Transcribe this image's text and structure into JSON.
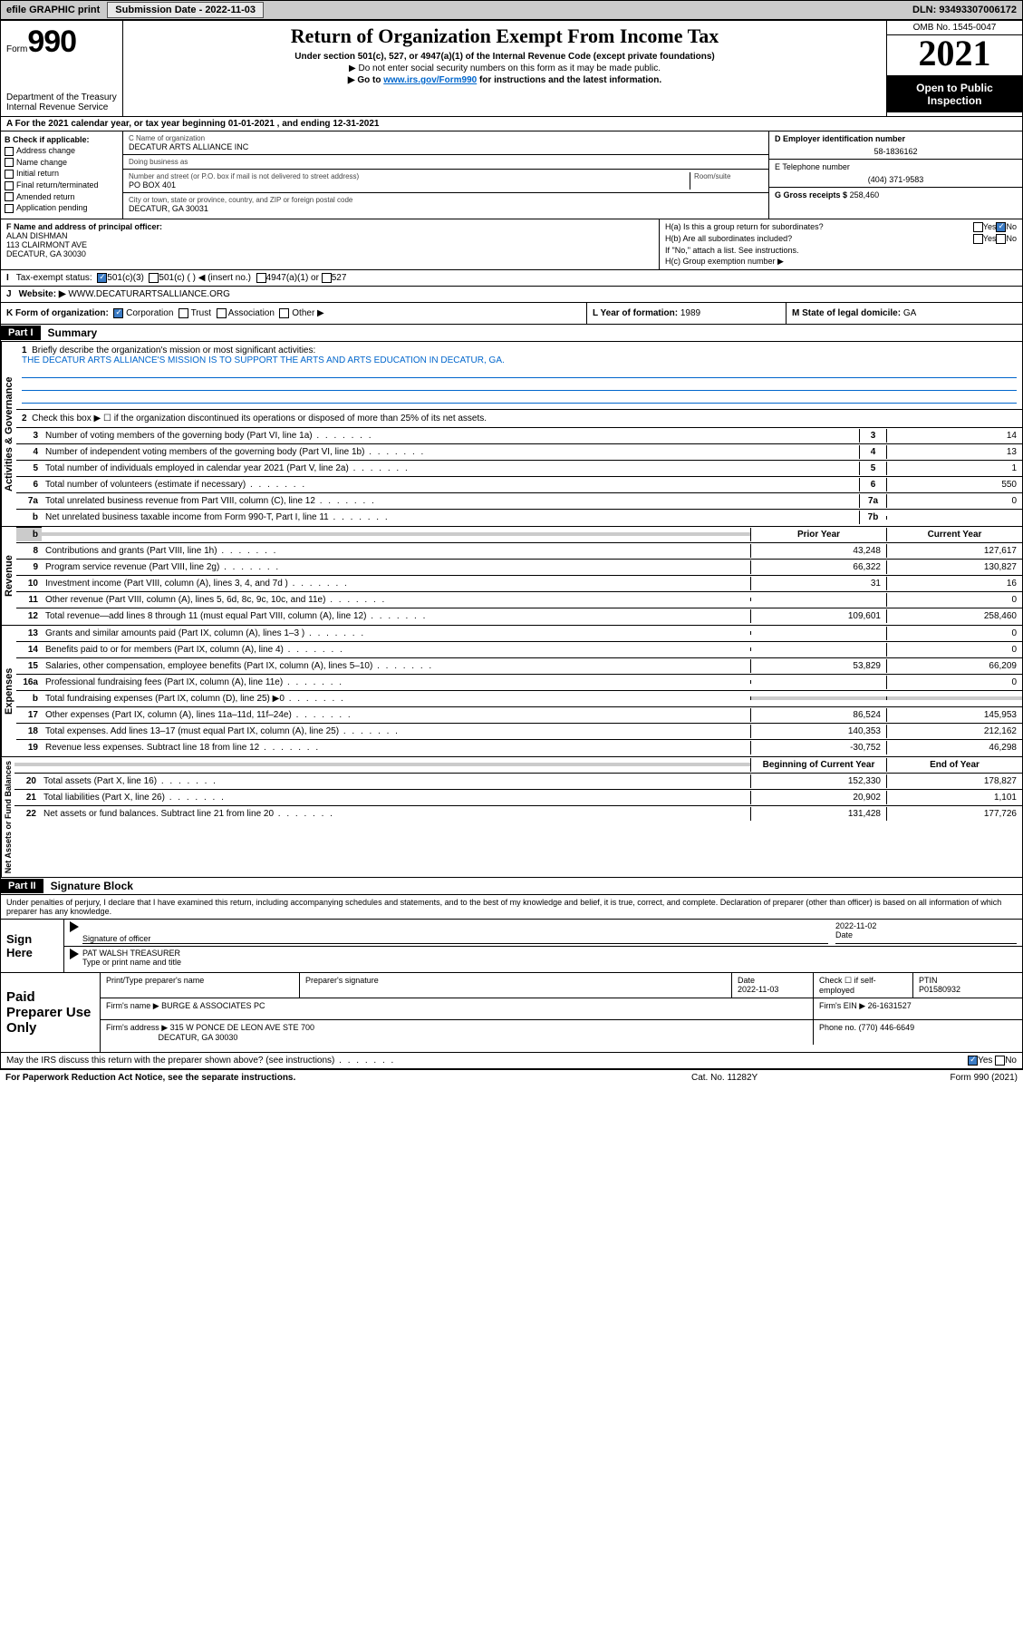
{
  "topbar": {
    "efile_label": "efile GRAPHIC print",
    "submission_label": "Submission Date - 2022-11-03",
    "dln_label": "DLN: 93493307006172"
  },
  "header": {
    "form_label": "Form",
    "form_num": "990",
    "dept": "Department of the Treasury Internal Revenue Service",
    "title": "Return of Organization Exempt From Income Tax",
    "subtitle": "Under section 501(c), 527, or 4947(a)(1) of the Internal Revenue Code (except private foundations)",
    "instr1": "▶ Do not enter social security numbers on this form as it may be made public.",
    "instr2_pre": "▶ Go to ",
    "instr2_link": "www.irs.gov/Form990",
    "instr2_post": " for instructions and the latest information.",
    "omb": "OMB No. 1545-0047",
    "year": "2021",
    "open_pub": "Open to Public Inspection"
  },
  "row_a": "A For the 2021 calendar year, or tax year beginning 01-01-2021   , and ending 12-31-2021",
  "section_b": {
    "hdr": "B Check if applicable:",
    "items": [
      "Address change",
      "Name change",
      "Initial return",
      "Final return/terminated",
      "Amended return",
      "Application pending"
    ]
  },
  "section_c": {
    "name_lbl": "C Name of organization",
    "name": "DECATUR ARTS ALLIANCE INC",
    "dba_lbl": "Doing business as",
    "dba": "",
    "street_lbl": "Number and street (or P.O. box if mail is not delivered to street address)",
    "room_lbl": "Room/suite",
    "street": "PO BOX 401",
    "city_lbl": "City or town, state or province, country, and ZIP or foreign postal code",
    "city": "DECATUR, GA  30031"
  },
  "section_d": {
    "ein_lbl": "D Employer identification number",
    "ein": "58-1836162",
    "tel_lbl": "E Telephone number",
    "tel": "(404) 371-9583",
    "gross_lbl": "G Gross receipts $",
    "gross": "258,460"
  },
  "section_f": {
    "lbl": "F Name and address of principal officer:",
    "name": "ALAN DISHMAN",
    "addr1": "113 CLAIRMONT AVE",
    "addr2": "DECATUR, GA  30030"
  },
  "section_h": {
    "ha": "H(a)  Is this a group return for subordinates?",
    "hb": "H(b)  Are all subordinates included?",
    "hb_note": "If \"No,\" attach a list. See instructions.",
    "hc": "H(c)  Group exemption number ▶",
    "yes": "Yes",
    "no": "No"
  },
  "row_i": {
    "lbl": "I",
    "text": "Tax-exempt status:",
    "opts": [
      "501(c)(3)",
      "501(c) (  ) ◀ (insert no.)",
      "4947(a)(1) or",
      "527"
    ]
  },
  "row_j": {
    "lbl": "J",
    "text": "Website: ▶",
    "val": "WWW.DECATURARTSALLIANCE.ORG"
  },
  "row_k": {
    "lbl": "K Form of organization:",
    "opts": [
      "Corporation",
      "Trust",
      "Association",
      "Other ▶"
    ]
  },
  "row_l": {
    "lbl": "L Year of formation:",
    "val": "1989"
  },
  "row_m": {
    "lbl": "M State of legal domicile:",
    "val": "GA"
  },
  "part1": {
    "hdr": "Part I",
    "title": "Summary",
    "q1": "Briefly describe the organization's mission or most significant activities:",
    "mission": "THE DECATUR ARTS ALLIANCE'S MISSION IS TO SUPPORT THE ARTS AND ARTS EDUCATION IN DECATUR, GA.",
    "q2": "Check this box ▶ ☐  if the organization discontinued its operations or disposed of more than 25% of its net assets."
  },
  "gov_lines": [
    {
      "n": "3",
      "d": "Number of voting members of the governing body (Part VI, line 1a)",
      "b": "3",
      "v": "14"
    },
    {
      "n": "4",
      "d": "Number of independent voting members of the governing body (Part VI, line 1b)",
      "b": "4",
      "v": "13"
    },
    {
      "n": "5",
      "d": "Total number of individuals employed in calendar year 2021 (Part V, line 2a)",
      "b": "5",
      "v": "1"
    },
    {
      "n": "6",
      "d": "Total number of volunteers (estimate if necessary)",
      "b": "6",
      "v": "550"
    },
    {
      "n": "7a",
      "d": "Total unrelated business revenue from Part VIII, column (C), line 12",
      "b": "7a",
      "v": "0"
    },
    {
      "n": "b",
      "d": "Net unrelated business taxable income from Form 990-T, Part I, line 11",
      "b": "7b",
      "v": ""
    }
  ],
  "rev_hdr": {
    "prior": "Prior Year",
    "current": "Current Year"
  },
  "rev_lines": [
    {
      "n": "8",
      "d": "Contributions and grants (Part VIII, line 1h)",
      "p": "43,248",
      "c": "127,617"
    },
    {
      "n": "9",
      "d": "Program service revenue (Part VIII, line 2g)",
      "p": "66,322",
      "c": "130,827"
    },
    {
      "n": "10",
      "d": "Investment income (Part VIII, column (A), lines 3, 4, and 7d )",
      "p": "31",
      "c": "16"
    },
    {
      "n": "11",
      "d": "Other revenue (Part VIII, column (A), lines 5, 6d, 8c, 9c, 10c, and 11e)",
      "p": "",
      "c": "0"
    },
    {
      "n": "12",
      "d": "Total revenue—add lines 8 through 11 (must equal Part VIII, column (A), line 12)",
      "p": "109,601",
      "c": "258,460"
    }
  ],
  "exp_lines": [
    {
      "n": "13",
      "d": "Grants and similar amounts paid (Part IX, column (A), lines 1–3 )",
      "p": "",
      "c": "0"
    },
    {
      "n": "14",
      "d": "Benefits paid to or for members (Part IX, column (A), line 4)",
      "p": "",
      "c": "0"
    },
    {
      "n": "15",
      "d": "Salaries, other compensation, employee benefits (Part IX, column (A), lines 5–10)",
      "p": "53,829",
      "c": "66,209"
    },
    {
      "n": "16a",
      "d": "Professional fundraising fees (Part IX, column (A), line 11e)",
      "p": "",
      "c": "0"
    },
    {
      "n": "b",
      "d": "Total fundraising expenses (Part IX, column (D), line 25) ▶0",
      "p": "shaded",
      "c": "shaded"
    },
    {
      "n": "17",
      "d": "Other expenses (Part IX, column (A), lines 11a–11d, 11f–24e)",
      "p": "86,524",
      "c": "145,953"
    },
    {
      "n": "18",
      "d": "Total expenses. Add lines 13–17 (must equal Part IX, column (A), line 25)",
      "p": "140,353",
      "c": "212,162"
    },
    {
      "n": "19",
      "d": "Revenue less expenses. Subtract line 18 from line 12",
      "p": "-30,752",
      "c": "46,298"
    }
  ],
  "net_hdr": {
    "beg": "Beginning of Current Year",
    "end": "End of Year"
  },
  "net_lines": [
    {
      "n": "20",
      "d": "Total assets (Part X, line 16)",
      "p": "152,330",
      "c": "178,827"
    },
    {
      "n": "21",
      "d": "Total liabilities (Part X, line 26)",
      "p": "20,902",
      "c": "1,101"
    },
    {
      "n": "22",
      "d": "Net assets or fund balances. Subtract line 21 from line 20",
      "p": "131,428",
      "c": "177,726"
    }
  ],
  "vlabels": {
    "gov": "Activities & Governance",
    "rev": "Revenue",
    "exp": "Expenses",
    "net": "Net Assets or Fund Balances"
  },
  "part2": {
    "hdr": "Part II",
    "title": "Signature Block",
    "decl": "Under penalties of perjury, I declare that I have examined this return, including accompanying schedules and statements, and to the best of my knowledge and belief, it is true, correct, and complete. Declaration of preparer (other than officer) is based on all information of which preparer has any knowledge."
  },
  "sign": {
    "lbl": "Sign Here",
    "sig_lbl": "Signature of officer",
    "date_lbl": "Date",
    "date": "2022-11-02",
    "name": "PAT WALSH  TREASURER",
    "name_lbl": "Type or print name and title"
  },
  "prep": {
    "lbl": "Paid Preparer Use Only",
    "r1": {
      "c1": "Print/Type preparer's name",
      "c2": "Preparer's signature",
      "c3": "Date",
      "c3v": "2022-11-03",
      "c4": "Check ☐ if self-employed",
      "c5": "PTIN",
      "c5v": "P01580932"
    },
    "r2": {
      "c1": "Firm's name      ▶",
      "c1v": "BURGE & ASSOCIATES PC",
      "c2": "Firm's EIN ▶",
      "c2v": "26-1631527"
    },
    "r3": {
      "c1": "Firm's address ▶",
      "c1v": "315 W PONCE DE LEON AVE STE 700",
      "c1v2": "DECATUR, GA  30030",
      "c2": "Phone no.",
      "c2v": "(770) 446-6649"
    }
  },
  "may_irs": "May the IRS discuss this return with the preparer shown above? (see instructions)",
  "footer": {
    "l": "For Paperwork Reduction Act Notice, see the separate instructions.",
    "m": "Cat. No. 11282Y",
    "r": "Form 990 (2021)"
  }
}
